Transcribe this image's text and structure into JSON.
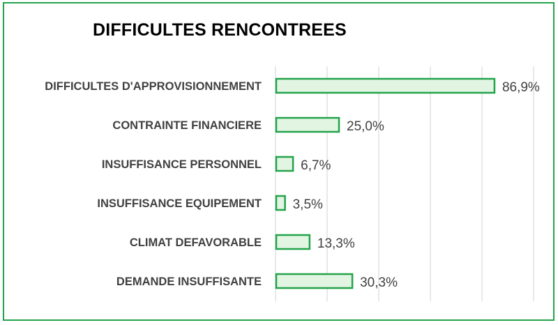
{
  "chart_data": {
    "type": "bar",
    "orientation": "horizontal",
    "title": "DIFFICULTES RENCONTREES",
    "categories": [
      "DIFFICULTES D'APPROVISIONNEMENT",
      "CONTRAINTE FINANCIERE",
      "INSUFFISANCE PERSONNEL",
      "INSUFFISANCE EQUIPEMENT",
      "CLIMAT DEFAVORABLE",
      "DEMANDE INSUFFISANTE"
    ],
    "values": [
      86.9,
      25.0,
      6.7,
      3.5,
      13.3,
      30.3
    ],
    "value_labels": [
      "86,9%",
      "25,0%",
      "6,7%",
      "3,5%",
      "13,3%",
      "30,3%"
    ],
    "xlim": [
      0,
      100
    ],
    "grid": true,
    "colors": {
      "bar_fill": "#e2f5e2",
      "bar_stroke": "#22a34a",
      "frame": "#22a34a",
      "grid": "#d9d9d9",
      "text": "#404040"
    }
  }
}
